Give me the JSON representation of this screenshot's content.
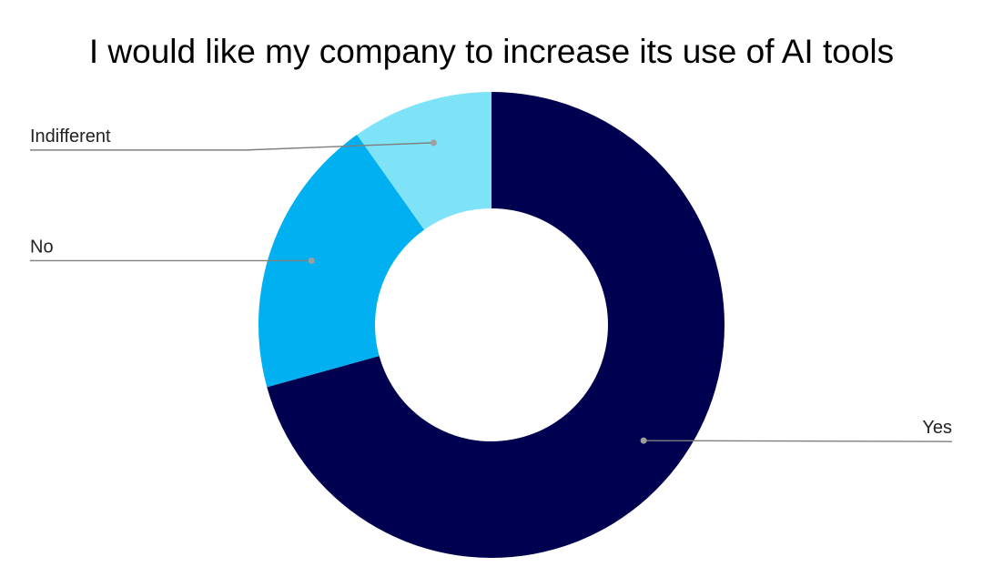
{
  "chart_data": {
    "type": "pie",
    "donut": true,
    "title": "I would like my company to increase its use of AI tools",
    "slices": [
      {
        "label": "Yes",
        "value": 70.7,
        "color": "#000050"
      },
      {
        "label": "No",
        "value": 19.5,
        "color": "#00B0F0"
      },
      {
        "label": "Indifferent",
        "value": 9.8,
        "color": "#7FE3F8"
      }
    ],
    "legend": "none",
    "data_labels": "outside-with-leader-lines"
  }
}
